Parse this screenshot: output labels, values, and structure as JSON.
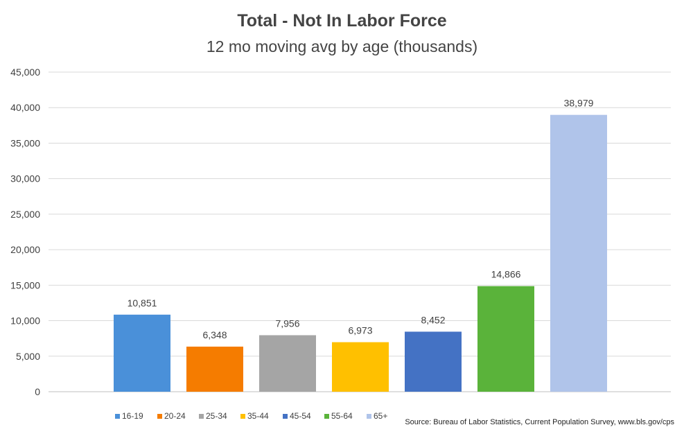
{
  "chart_data": {
    "type": "bar",
    "title": "Total - Not In Labor Force",
    "subtitle": "12 mo moving avg by age (thousands)",
    "xlabel": "",
    "ylabel": "",
    "ylim": [
      0,
      45000
    ],
    "yticks": [
      0,
      5000,
      10000,
      15000,
      20000,
      25000,
      30000,
      35000,
      40000,
      45000
    ],
    "ytick_labels": [
      "0",
      "5,000",
      "10,000",
      "15,000",
      "20,000",
      "25,000",
      "30,000",
      "35,000",
      "40,000",
      "45,000"
    ],
    "grid": true,
    "legend_position": "bottom",
    "categories": [
      "16-19",
      "20-24",
      "25-34",
      "35-44",
      "45-54",
      "55-64",
      "65+"
    ],
    "values": [
      10851,
      6348,
      7956,
      6973,
      8452,
      14866,
      38979
    ],
    "data_labels": [
      "10,851",
      "6,348",
      "7,956",
      "6,973",
      "8,452",
      "14,866",
      "38,979"
    ],
    "colors": [
      "#4a90d9",
      "#f57c00",
      "#a5a5a5",
      "#ffc000",
      "#4472c4",
      "#5ab33a",
      "#b0c4ea"
    ]
  },
  "source_note": "Source: Bureau of Labor Statistics, Current Population Survey,  www.bls.gov/cps"
}
